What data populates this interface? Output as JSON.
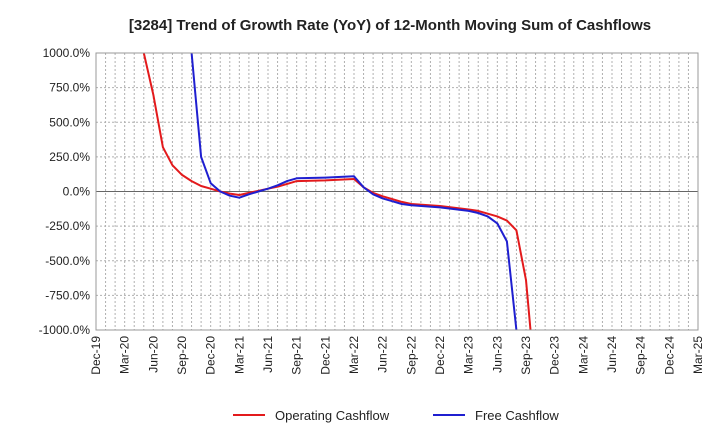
{
  "chart_data": {
    "type": "line",
    "title": "[3284]  Trend of Growth Rate (YoY) of 12-Month Moving Sum of Cashflows",
    "xlabel": "",
    "ylabel": "",
    "ylim": [
      -1000,
      1000
    ],
    "yticks": [
      1000,
      750,
      500,
      250,
      0,
      -250,
      -500,
      -750,
      -1000
    ],
    "ytick_labels": [
      "1000.0%",
      "750.0%",
      "500.0%",
      "250.0%",
      "0.0%",
      "-250.0%",
      "-500.0%",
      "-750.0%",
      "-1000.0%"
    ],
    "x_categories": [
      "Dec-19",
      "Mar-20",
      "Jun-20",
      "Sep-20",
      "Dec-20",
      "Mar-21",
      "Jun-21",
      "Sep-21",
      "Dec-21",
      "Mar-22",
      "Jun-22",
      "Sep-22",
      "Dec-22",
      "Mar-23",
      "Jun-23",
      "Sep-23",
      "Dec-23",
      "Mar-24",
      "Jun-24",
      "Sep-24",
      "Dec-24",
      "Mar-25"
    ],
    "grid": true,
    "legend_position": "bottom",
    "series": [
      {
        "name": "Operating Cashflow",
        "color": "#e31a1c",
        "x": [
          "2020-05",
          "2020-06",
          "2020-07",
          "2020-08",
          "2020-09",
          "2020-10",
          "2020-11",
          "2020-12",
          "2021-01",
          "2021-02",
          "2021-03",
          "2021-04",
          "2021-05",
          "2021-06",
          "2021-07",
          "2021-08",
          "2021-09",
          "2021-12",
          "2022-03",
          "2022-04",
          "2022-05",
          "2022-06",
          "2022-07",
          "2022-08",
          "2022-09",
          "2022-12",
          "2023-03",
          "2023-04",
          "2023-05",
          "2023-06",
          "2023-07",
          "2023-08",
          "2023-09",
          "2023-09-15"
        ],
        "values": [
          1000,
          700,
          320,
          190,
          120,
          75,
          40,
          20,
          0,
          -15,
          -25,
          -10,
          5,
          20,
          35,
          55,
          75,
          80,
          90,
          30,
          -10,
          -35,
          -55,
          -75,
          -90,
          -105,
          -130,
          -140,
          -160,
          -180,
          -210,
          -280,
          -640,
          -1000
        ]
      },
      {
        "name": "Free Cashflow",
        "color": "#1f1fd0",
        "x": [
          "2020-10",
          "2020-11",
          "2020-12",
          "2021-01",
          "2021-02",
          "2021-03",
          "2021-04",
          "2021-05",
          "2021-06",
          "2021-07",
          "2021-08",
          "2021-09",
          "2021-12",
          "2022-03",
          "2022-04",
          "2022-05",
          "2022-06",
          "2022-07",
          "2022-08",
          "2022-09",
          "2022-12",
          "2023-03",
          "2023-04",
          "2023-05",
          "2023-06",
          "2023-07",
          "2023-08"
        ],
        "values": [
          1000,
          250,
          60,
          0,
          -30,
          -45,
          -20,
          0,
          20,
          45,
          75,
          95,
          100,
          110,
          30,
          -20,
          -50,
          -70,
          -90,
          -100,
          -115,
          -140,
          -155,
          -180,
          -230,
          -360,
          -1000
        ]
      }
    ]
  }
}
